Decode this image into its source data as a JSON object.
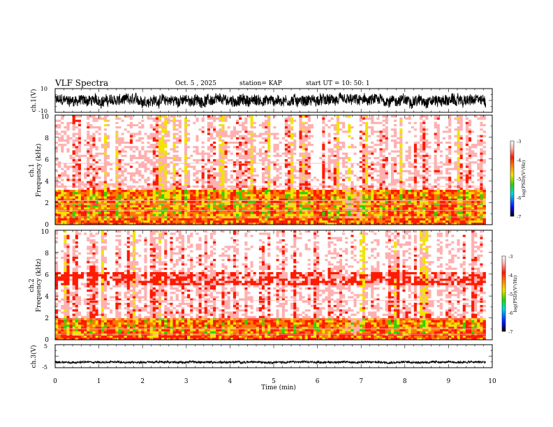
{
  "header": {
    "title": "VLF Spectra",
    "date": "Oct. 5 , 2025",
    "station": "station= KAP",
    "start": "start UT = 10: 50: 1"
  },
  "chart_data": {
    "type": "heatmap",
    "xlabel": "Time (min)",
    "xlim": [
      0,
      10
    ],
    "x_ticks": [
      "0",
      "1",
      "2",
      "3",
      "4",
      "5",
      "6",
      "7",
      "8",
      "9",
      "10"
    ],
    "panels": [
      {
        "id": "ch1-waveform",
        "type": "line",
        "ylabel": "ch.1(V)",
        "ylim": [
          -10,
          10
        ],
        "y_ticks": [
          "10",
          "-10"
        ],
        "data_end_min": 9.85,
        "mean": 0,
        "amplitude": 4.5
      },
      {
        "id": "ch1-spectrogram",
        "type": "heatmap",
        "ylabel": "ch.1 Frequency (kHz)",
        "ylim": [
          0,
          10
        ],
        "y_ticks": [
          "0",
          "2",
          "4",
          "6",
          "8",
          "10"
        ],
        "colorbar_label": "log(PSD)(V²/Hz)",
        "colorbar_ticks": [
          "-3",
          "-4",
          "-5",
          "-6",
          "-7"
        ],
        "colorbar_range": [
          -7,
          -3
        ],
        "data_end_min": 9.85,
        "quiet_interval_min": [
          6.6,
          7.0
        ]
      },
      {
        "id": "ch2-spectrogram",
        "type": "heatmap",
        "ylabel": "ch.2 Frequency (kHz)",
        "ylim": [
          0,
          10
        ],
        "y_ticks": [
          "0",
          "2",
          "4",
          "6",
          "8",
          "10"
        ],
        "colorbar_label": "log(PSD)(V²/Hz)",
        "colorbar_ticks": [
          "-3",
          "-4",
          "-5",
          "-6",
          "-7"
        ],
        "colorbar_range": [
          -7,
          -3
        ],
        "data_end_min": 9.85,
        "quiet_interval_min": [
          6.6,
          7.0
        ]
      },
      {
        "id": "ch3-waveform",
        "type": "line",
        "ylabel": "ch.3(V)",
        "ylim": [
          -5,
          5
        ],
        "y_ticks": [
          "5",
          "-5"
        ],
        "data_end_min": 9.85,
        "mean": -2.6,
        "amplitude": 0.45
      }
    ],
    "colors": {
      "white": "#ffffff",
      "pink": "#ffb0b0",
      "red": "#ff1a00",
      "orange": "#ff7a00",
      "yellow": "#f2e400",
      "green": "#2cd400",
      "cyan": "#00d8e8",
      "blue": "#0010ff",
      "black": "#000000"
    }
  }
}
